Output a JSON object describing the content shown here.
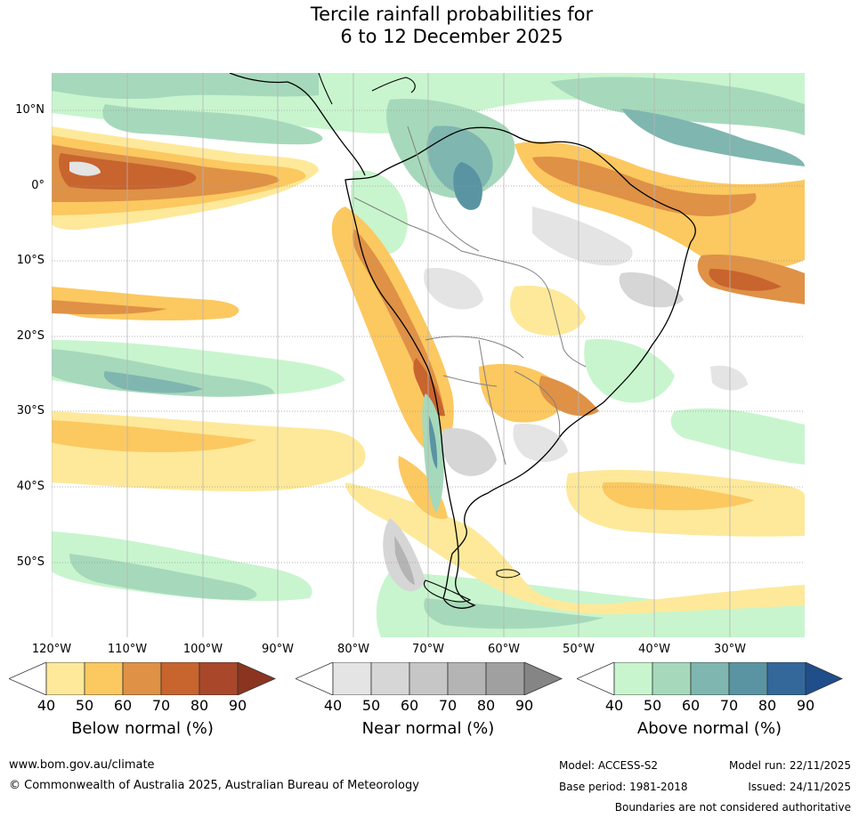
{
  "title_line1": "Tercile rainfall probabilities for",
  "title_line2": "6 to 12 December 2025",
  "lat_labels": [
    "10°N",
    "0°",
    "10°S",
    "20°S",
    "30°S",
    "40°S",
    "50°S"
  ],
  "lon_labels": [
    "120°W",
    "110°W",
    "100°W",
    "90°W",
    "80°W",
    "70°W",
    "60°W",
    "50°W",
    "40°W",
    "30°W"
  ],
  "colorbars": [
    {
      "title": "Below normal (%)",
      "ticks": [
        "40",
        "50",
        "60",
        "70",
        "80",
        "90"
      ],
      "colors": [
        "#ffffff",
        "#fee99a",
        "#fcc860",
        "#df9146",
        "#c8642e",
        "#a9472a",
        "#8b3520"
      ]
    },
    {
      "title": "Near normal (%)",
      "ticks": [
        "40",
        "50",
        "60",
        "70",
        "80",
        "90"
      ],
      "colors": [
        "#ffffff",
        "#e4e4e4",
        "#d6d6d6",
        "#c6c6c6",
        "#b4b4b4",
        "#a0a0a0",
        "#858585"
      ]
    },
    {
      "title": "Above normal (%)",
      "ticks": [
        "40",
        "50",
        "60",
        "70",
        "80",
        "90"
      ],
      "colors": [
        "#ffffff",
        "#c8f5ce",
        "#a6d9bb",
        "#7fb6b0",
        "#5a94a2",
        "#34689a",
        "#1f4e8a"
      ]
    }
  ],
  "footer": {
    "website": "www.bom.gov.au/climate",
    "copyright": "© Commonwealth of Australia 2025, Australian Bureau of Meteorology",
    "model": "Model: ACCESS-S2",
    "base_period": "Base period: 1981-2018",
    "model_run": "Model run: 22/11/2025",
    "issued": "Issued: 24/11/2025",
    "boundaries_note": "Boundaries are not considered authoritative"
  },
  "map_colors": {
    "below": [
      "#fee99a",
      "#fcc860",
      "#df9146",
      "#c8642e",
      "#a9472a"
    ],
    "near": [
      "#e4e4e4",
      "#d6d6d6"
    ],
    "above": [
      "#c8f5ce",
      "#a6d9bb",
      "#7fb6b0",
      "#5a94a2"
    ]
  }
}
